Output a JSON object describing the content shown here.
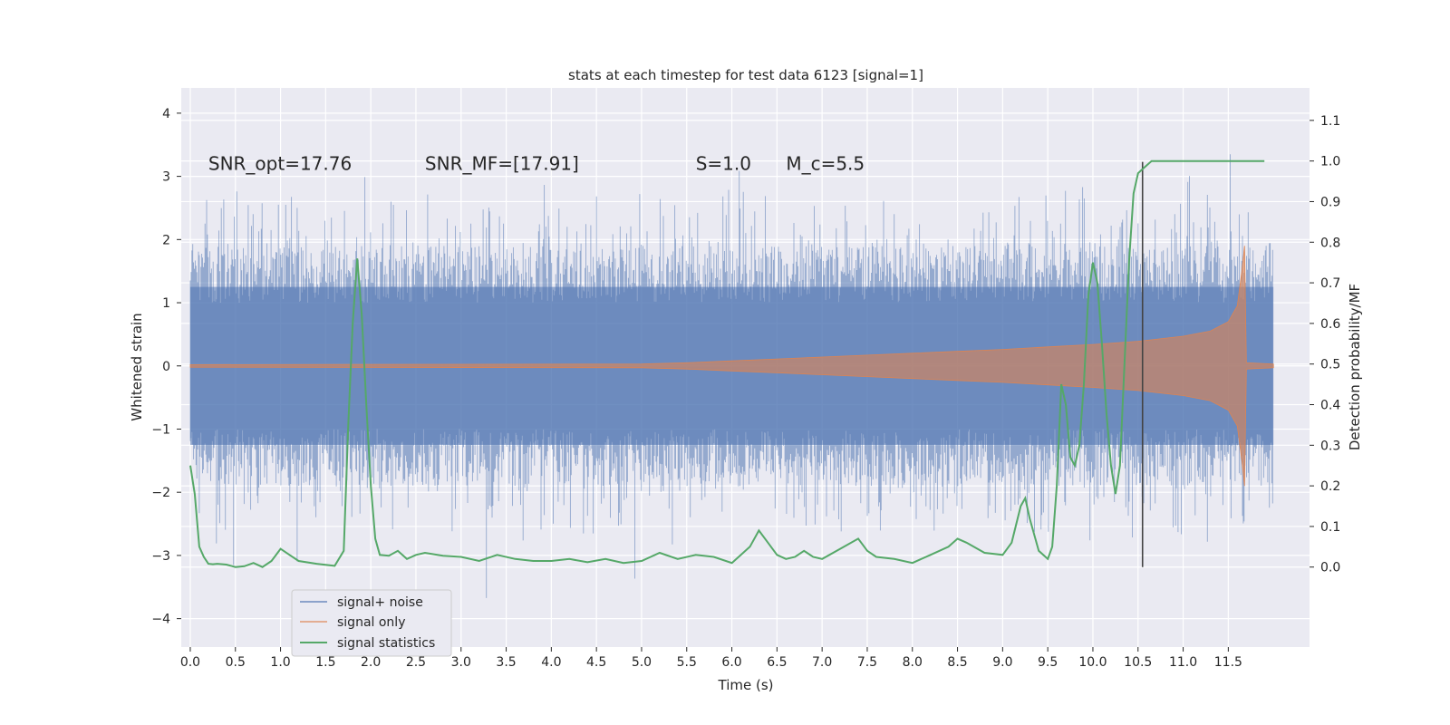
{
  "chart_data": {
    "type": "line",
    "title": "stats at each timestep for test data 6123 [signal=1]",
    "xlabel": "Time (s)",
    "ylabel": "Whitened strain",
    "y2label": "Detection probability/MF",
    "xlim": [
      -0.1,
      12.4
    ],
    "ylim": [
      -4.45,
      4.4
    ],
    "y2lim": [
      -0.197,
      1.18
    ],
    "x_ticks": [
      0.0,
      0.5,
      1.0,
      1.5,
      2.0,
      2.5,
      3.0,
      3.5,
      4.0,
      4.5,
      5.0,
      5.5,
      6.0,
      6.5,
      7.0,
      7.5,
      8.0,
      8.5,
      9.0,
      9.5,
      10.0,
      10.5,
      11.0,
      11.5
    ],
    "x_tick_labels": [
      "0.0",
      "0.5",
      "1.0",
      "1.5",
      "2.0",
      "2.5",
      "3.0",
      "3.5",
      "4.0",
      "4.5",
      "5.0",
      "5.5",
      "6.0",
      "6.5",
      "7.0",
      "7.5",
      "8.0",
      "8.5",
      "9.0",
      "9.5",
      "10.0",
      "10.5",
      "11.0",
      "11.5"
    ],
    "y_ticks": [
      -4,
      -3,
      -2,
      -1,
      0,
      1,
      2,
      3,
      4
    ],
    "y_tick_labels": [
      "−4",
      "−3",
      "−2",
      "−1",
      "0",
      "1",
      "2",
      "3",
      "4"
    ],
    "y2_ticks": [
      0.0,
      0.1,
      0.2,
      0.3,
      0.4,
      0.5,
      0.6,
      0.7,
      0.8,
      0.9,
      1.0,
      1.1
    ],
    "y2_tick_labels": [
      "0.0",
      "0.1",
      "0.2",
      "0.3",
      "0.4",
      "0.5",
      "0.6",
      "0.7",
      "0.8",
      "0.9",
      "1.0",
      "1.1"
    ],
    "grid": true,
    "legend_position": "lower-left",
    "vline_x": 10.55,
    "colors": {
      "signal_noise": "#4c72b0",
      "signal_only": "#dd8452",
      "signal_statistics": "#55a868",
      "vline": "#444444",
      "plot_bg": "#eaeaf2",
      "grid": "#ffffff"
    },
    "annotations": [
      {
        "text": "SNR_opt=17.76",
        "x": 0.2,
        "y": 3.2
      },
      {
        "text": "SNR_MF=[17.91]",
        "x": 2.6,
        "y": 3.2
      },
      {
        "text": "S=1.0",
        "x": 5.6,
        "y": 3.2
      },
      {
        "text": "M_c=5.5",
        "x": 6.6,
        "y": 3.2
      }
    ],
    "series": [
      {
        "name": "signal+ noise",
        "axis": "left",
        "style": "band",
        "x_range": [
          0.0,
          12.0
        ],
        "core_amplitude": 1.85,
        "peak_amplitude": 4.0
      },
      {
        "name": "signal only",
        "axis": "left",
        "style": "envelope",
        "x": [
          0.0,
          5.0,
          5.5,
          6.0,
          6.5,
          7.0,
          7.5,
          8.0,
          8.5,
          9.0,
          9.5,
          10.0,
          10.5,
          11.0,
          11.3,
          11.5,
          11.6,
          11.65,
          11.68,
          11.7,
          12.0
        ],
        "amplitude": [
          0.02,
          0.03,
          0.05,
          0.08,
          0.11,
          0.14,
          0.17,
          0.2,
          0.23,
          0.26,
          0.3,
          0.34,
          0.39,
          0.47,
          0.55,
          0.7,
          0.95,
          1.5,
          1.9,
          0.05,
          0.03
        ]
      },
      {
        "name": "signal statistics",
        "axis": "right",
        "x": [
          0.0,
          0.05,
          0.1,
          0.15,
          0.2,
          0.25,
          0.3,
          0.4,
          0.5,
          0.6,
          0.7,
          0.8,
          0.9,
          1.0,
          1.1,
          1.2,
          1.4,
          1.6,
          1.7,
          1.75,
          1.8,
          1.85,
          1.9,
          1.95,
          2.0,
          2.05,
          2.1,
          2.2,
          2.3,
          2.4,
          2.5,
          2.6,
          2.8,
          3.0,
          3.2,
          3.4,
          3.6,
          3.8,
          4.0,
          4.2,
          4.4,
          4.6,
          4.8,
          5.0,
          5.2,
          5.4,
          5.6,
          5.8,
          6.0,
          6.2,
          6.3,
          6.4,
          6.5,
          6.6,
          6.7,
          6.8,
          6.9,
          7.0,
          7.2,
          7.4,
          7.5,
          7.6,
          7.8,
          8.0,
          8.2,
          8.4,
          8.5,
          8.6,
          8.8,
          9.0,
          9.1,
          9.2,
          9.25,
          9.3,
          9.4,
          9.5,
          9.55,
          9.6,
          9.65,
          9.7,
          9.75,
          9.8,
          9.85,
          9.9,
          9.95,
          10.0,
          10.05,
          10.1,
          10.15,
          10.2,
          10.25,
          10.3,
          10.35,
          10.4,
          10.45,
          10.5,
          10.55,
          10.6,
          10.65,
          10.7,
          10.8,
          10.9,
          11.0,
          11.5,
          11.9
        ],
        "y": [
          0.25,
          0.18,
          0.05,
          0.025,
          0.008,
          0.007,
          0.008,
          0.006,
          0.0,
          0.002,
          0.01,
          0.0,
          0.015,
          0.045,
          0.03,
          0.015,
          0.008,
          0.003,
          0.04,
          0.35,
          0.6,
          0.76,
          0.62,
          0.4,
          0.2,
          0.07,
          0.03,
          0.028,
          0.04,
          0.02,
          0.03,
          0.035,
          0.028,
          0.025,
          0.015,
          0.03,
          0.02,
          0.015,
          0.015,
          0.02,
          0.012,
          0.02,
          0.01,
          0.015,
          0.035,
          0.02,
          0.03,
          0.025,
          0.01,
          0.05,
          0.09,
          0.06,
          0.03,
          0.02,
          0.025,
          0.04,
          0.025,
          0.02,
          0.045,
          0.07,
          0.04,
          0.025,
          0.02,
          0.01,
          0.03,
          0.05,
          0.07,
          0.06,
          0.035,
          0.03,
          0.06,
          0.15,
          0.17,
          0.12,
          0.04,
          0.02,
          0.05,
          0.2,
          0.45,
          0.4,
          0.27,
          0.25,
          0.3,
          0.45,
          0.67,
          0.75,
          0.7,
          0.55,
          0.38,
          0.25,
          0.18,
          0.25,
          0.5,
          0.75,
          0.92,
          0.97,
          0.98,
          0.99,
          1.0,
          1.0,
          1.0,
          1.0,
          1.0,
          1.0,
          1.0
        ]
      }
    ]
  }
}
